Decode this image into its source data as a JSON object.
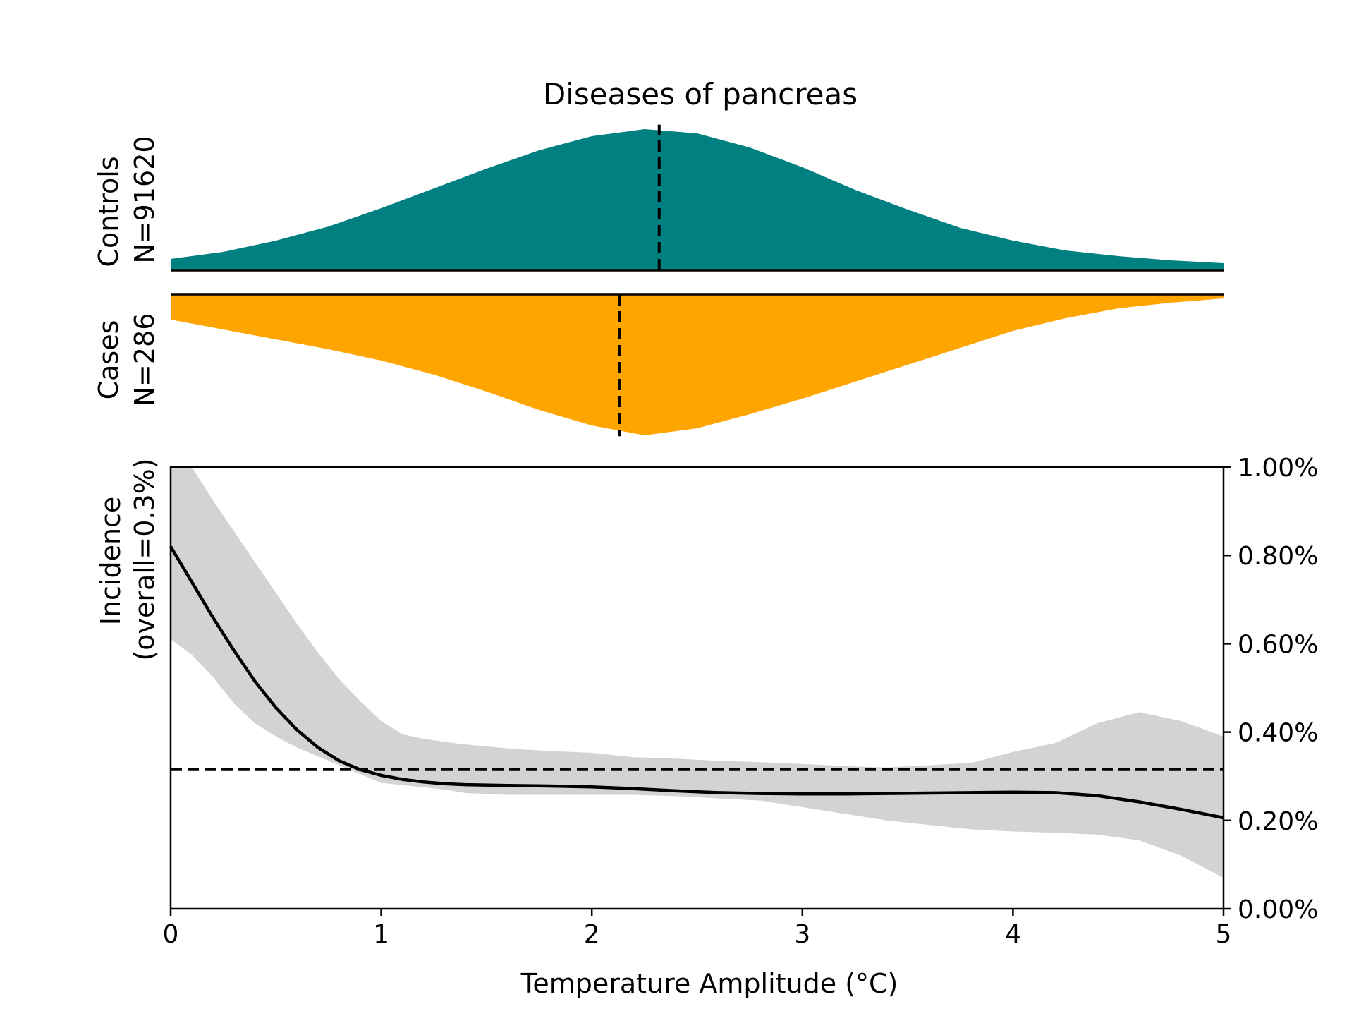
{
  "chart_data": {
    "type": "line",
    "title": "Diseases of pancreas",
    "xlabel": "Temperature Amplitude (°C)",
    "ylabel": [
      "Incidence",
      "(overall=0.3%)"
    ],
    "xlim": [
      0,
      5
    ],
    "ylim": [
      0,
      1.0
    ],
    "x_ticks": [
      0,
      1,
      2,
      3,
      4,
      5
    ],
    "x_tick_labels": [
      "0",
      "1",
      "2",
      "3",
      "4",
      "5"
    ],
    "y_ticks": [
      0,
      0.2,
      0.4,
      0.6,
      0.8,
      1.0
    ],
    "y_tick_labels": [
      "0.00%",
      "0.20%",
      "0.40%",
      "0.60%",
      "0.80%",
      "1.00%"
    ],
    "y_axis_side": "right",
    "grid": false,
    "overall_incidence": 0.315,
    "incidence": {
      "x": [
        0,
        0.1,
        0.2,
        0.3,
        0.4,
        0.5,
        0.6,
        0.7,
        0.8,
        0.9,
        1.0,
        1.1,
        1.2,
        1.3,
        1.4,
        1.6,
        1.8,
        2.0,
        2.2,
        2.4,
        2.6,
        2.8,
        3.0,
        3.2,
        3.4,
        3.6,
        3.8,
        4.0,
        4.2,
        4.4,
        4.6,
        4.8,
        5.0
      ],
      "y": [
        0.82,
        0.74,
        0.66,
        0.585,
        0.515,
        0.455,
        0.405,
        0.365,
        0.335,
        0.315,
        0.302,
        0.293,
        0.287,
        0.283,
        0.281,
        0.279,
        0.278,
        0.276,
        0.272,
        0.267,
        0.263,
        0.261,
        0.26,
        0.26,
        0.261,
        0.262,
        0.263,
        0.264,
        0.263,
        0.256,
        0.242,
        0.225,
        0.206
      ],
      "ci_lower": [
        0.61,
        0.575,
        0.525,
        0.465,
        0.42,
        0.39,
        0.365,
        0.345,
        0.325,
        0.305,
        0.285,
        0.28,
        0.275,
        0.27,
        0.262,
        0.258,
        0.258,
        0.258,
        0.258,
        0.255,
        0.25,
        0.245,
        0.23,
        0.215,
        0.2,
        0.19,
        0.18,
        0.175,
        0.172,
        0.168,
        0.155,
        0.12,
        0.07
      ],
      "ci_upper": [
        1.03,
        1.0,
        0.925,
        0.855,
        0.785,
        0.715,
        0.645,
        0.58,
        0.52,
        0.47,
        0.425,
        0.395,
        0.385,
        0.378,
        0.372,
        0.363,
        0.357,
        0.353,
        0.343,
        0.34,
        0.335,
        0.332,
        0.328,
        0.323,
        0.32,
        0.325,
        0.33,
        0.355,
        0.375,
        0.42,
        0.445,
        0.425,
        0.39
      ]
    },
    "controls": {
      "label": [
        "Controls",
        "N=91620"
      ],
      "color": "#008080",
      "median": 2.32,
      "density": {
        "x": [
          0,
          0.25,
          0.5,
          0.75,
          1.0,
          1.25,
          1.5,
          1.75,
          2.0,
          2.25,
          2.5,
          2.75,
          3.0,
          3.25,
          3.5,
          3.75,
          4.0,
          4.25,
          4.5,
          4.75,
          5.0
        ],
        "y": [
          0.08,
          0.13,
          0.21,
          0.31,
          0.44,
          0.58,
          0.72,
          0.85,
          0.95,
          1.0,
          0.97,
          0.87,
          0.73,
          0.57,
          0.43,
          0.3,
          0.21,
          0.14,
          0.1,
          0.07,
          0.05
        ]
      }
    },
    "cases": {
      "label": [
        "Cases",
        "N=286"
      ],
      "color": "#FFA500",
      "median": 2.13,
      "density": {
        "x": [
          0,
          0.25,
          0.5,
          0.75,
          1.0,
          1.25,
          1.5,
          1.75,
          2.0,
          2.25,
          2.5,
          2.75,
          3.0,
          3.25,
          3.5,
          3.75,
          4.0,
          4.25,
          4.5,
          4.75,
          5.0
        ],
        "y": [
          0.18,
          0.25,
          0.32,
          0.39,
          0.47,
          0.57,
          0.69,
          0.82,
          0.93,
          1.0,
          0.95,
          0.85,
          0.74,
          0.62,
          0.5,
          0.38,
          0.26,
          0.17,
          0.1,
          0.06,
          0.03
        ]
      }
    }
  }
}
